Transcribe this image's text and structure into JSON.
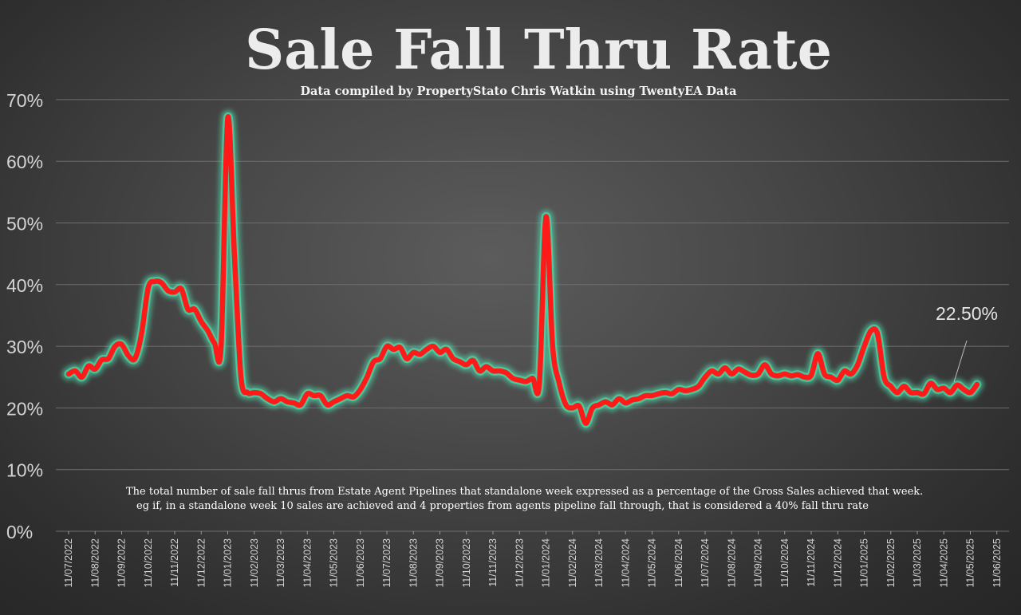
{
  "chart_data": {
    "type": "line",
    "title": "Sale Fall Thru Rate",
    "subtitle": "Data compiled by PropertyStato Chris Watkin using TwentyEA Data",
    "note_lines": [
      "The total number of sale fall thrus from Estate Agent Pipelines that standalone week expressed as a percentage of the Gross Sales achieved that week.",
      "eg if, in a standalone week 10 sales are achieved and 4 properties from agents pipeline fall through, that is considered a 40%  fall thru rate"
    ],
    "callout": "22.50%",
    "y_tick_labels": [
      "0%",
      "10%",
      "20%",
      "30%",
      "40%",
      "50%",
      "60%",
      "70%"
    ],
    "ylim": [
      0,
      70
    ],
    "x_tick_labels": [
      "11/07/2022",
      "11/08/2022",
      "11/09/2022",
      "11/10/2022",
      "11/11/2022",
      "11/12/2022",
      "11/01/2023",
      "11/02/2023",
      "11/03/2023",
      "11/04/2023",
      "11/05/2023",
      "11/06/2023",
      "11/07/2023",
      "11/08/2023",
      "11/09/2023",
      "11/10/2023",
      "11/11/2023",
      "11/12/2023",
      "11/01/2024",
      "11/02/2024",
      "11/03/2024",
      "11/04/2024",
      "11/05/2024",
      "11/06/2024",
      "11/07/2024",
      "11/08/2024",
      "11/09/2024",
      "11/10/2024",
      "11/11/2024",
      "11/12/2024",
      "11/01/2025",
      "11/02/2025",
      "11/03/2025",
      "11/04/2025",
      "11/05/2025",
      "11/06/2025"
    ],
    "grid": true,
    "colors": {
      "line": "#ff1a1a",
      "glow": "#4fe3b0",
      "grid": "#6e6e6e"
    },
    "series": [
      {
        "values": [
          [
            0,
            25.5
          ],
          [
            0.25,
            26
          ],
          [
            0.5,
            25
          ],
          [
            0.75,
            26.8
          ],
          [
            1,
            26.3
          ],
          [
            1.25,
            27.8
          ],
          [
            1.5,
            28
          ],
          [
            1.75,
            30
          ],
          [
            2,
            30.3
          ],
          [
            2.25,
            28.5
          ],
          [
            2.5,
            28
          ],
          [
            2.75,
            32
          ],
          [
            3,
            39.5
          ],
          [
            3.25,
            40.5
          ],
          [
            3.5,
            40.3
          ],
          [
            3.75,
            39
          ],
          [
            4,
            38.8
          ],
          [
            4.25,
            39.3
          ],
          [
            4.5,
            36
          ],
          [
            4.75,
            36
          ],
          [
            5,
            34
          ],
          [
            5.25,
            32.5
          ],
          [
            5.5,
            30.5
          ],
          [
            5.75,
            30
          ],
          [
            6,
            67
          ],
          [
            6.25,
            45
          ],
          [
            6.5,
            25
          ],
          [
            6.75,
            22.5
          ],
          [
            7,
            22.5
          ],
          [
            7.25,
            22.3
          ],
          [
            7.5,
            21.5
          ],
          [
            7.75,
            21
          ],
          [
            8,
            21.5
          ],
          [
            8.25,
            21
          ],
          [
            8.5,
            20.8
          ],
          [
            8.75,
            20.5
          ],
          [
            9,
            22.3
          ],
          [
            9.25,
            22
          ],
          [
            9.5,
            22
          ],
          [
            9.75,
            20.5
          ],
          [
            10,
            21
          ],
          [
            10.25,
            21.5
          ],
          [
            10.5,
            22
          ],
          [
            10.75,
            21.8
          ],
          [
            11,
            23
          ],
          [
            11.25,
            25
          ],
          [
            11.5,
            27.5
          ],
          [
            11.75,
            28
          ],
          [
            12,
            30
          ],
          [
            12.25,
            29.5
          ],
          [
            12.5,
            29.8
          ],
          [
            12.75,
            28
          ],
          [
            13,
            29
          ],
          [
            13.25,
            28.7
          ],
          [
            13.5,
            29.5
          ],
          [
            13.75,
            30
          ],
          [
            14,
            29
          ],
          [
            14.25,
            29.5
          ],
          [
            14.5,
            28
          ],
          [
            14.75,
            27.5
          ],
          [
            15,
            27
          ],
          [
            15.25,
            27.7
          ],
          [
            15.5,
            26
          ],
          [
            15.75,
            26.7
          ],
          [
            16,
            26
          ],
          [
            16.25,
            26
          ],
          [
            16.5,
            25.7
          ],
          [
            16.75,
            24.8
          ],
          [
            17,
            24.5
          ],
          [
            17.25,
            24.3
          ],
          [
            17.5,
            24.8
          ],
          [
            17.75,
            24
          ],
          [
            18,
            51
          ],
          [
            18.25,
            30
          ],
          [
            18.5,
            24
          ],
          [
            18.75,
            20.5
          ],
          [
            19,
            20
          ],
          [
            19.25,
            20.3
          ],
          [
            19.5,
            17.5
          ],
          [
            19.75,
            20
          ],
          [
            20,
            20.5
          ],
          [
            20.25,
            21
          ],
          [
            20.5,
            20.5
          ],
          [
            20.75,
            21.5
          ],
          [
            21,
            20.8
          ],
          [
            21.25,
            21.3
          ],
          [
            21.5,
            21.5
          ],
          [
            21.75,
            22
          ],
          [
            22,
            22
          ],
          [
            22.25,
            22.3
          ],
          [
            22.5,
            22.5
          ],
          [
            22.75,
            22.3
          ],
          [
            23,
            23
          ],
          [
            23.25,
            22.8
          ],
          [
            23.5,
            23
          ],
          [
            23.75,
            23.5
          ],
          [
            24,
            25
          ],
          [
            24.25,
            26
          ],
          [
            24.5,
            25.5
          ],
          [
            24.75,
            26.5
          ],
          [
            25,
            25.5
          ],
          [
            25.25,
            26.3
          ],
          [
            25.5,
            25.8
          ],
          [
            25.75,
            25.3
          ],
          [
            26,
            25.5
          ],
          [
            26.25,
            27
          ],
          [
            26.5,
            25.5
          ],
          [
            26.75,
            25.2
          ],
          [
            27,
            25.5
          ],
          [
            27.25,
            25.2
          ],
          [
            27.5,
            25.4
          ],
          [
            27.75,
            25
          ],
          [
            28,
            25.3
          ],
          [
            28.25,
            28.8
          ],
          [
            28.5,
            25.5
          ],
          [
            28.75,
            25
          ],
          [
            29,
            24.5
          ],
          [
            29.25,
            26
          ],
          [
            29.5,
            25.5
          ],
          [
            29.75,
            27
          ],
          [
            30,
            30
          ],
          [
            30.25,
            32.5
          ],
          [
            30.5,
            32
          ],
          [
            30.75,
            25
          ],
          [
            31,
            23.5
          ],
          [
            31.25,
            22.5
          ],
          [
            31.5,
            23.5
          ],
          [
            31.75,
            22.5
          ],
          [
            32,
            22.5
          ],
          [
            32.25,
            22.3
          ],
          [
            32.5,
            24
          ],
          [
            32.75,
            23
          ],
          [
            33,
            23.2
          ],
          [
            33.25,
            22.5
          ],
          [
            33.5,
            23.7
          ],
          [
            33.75,
            23
          ],
          [
            34,
            22.5
          ],
          [
            34.25,
            23.8
          ]
        ]
      }
    ]
  }
}
